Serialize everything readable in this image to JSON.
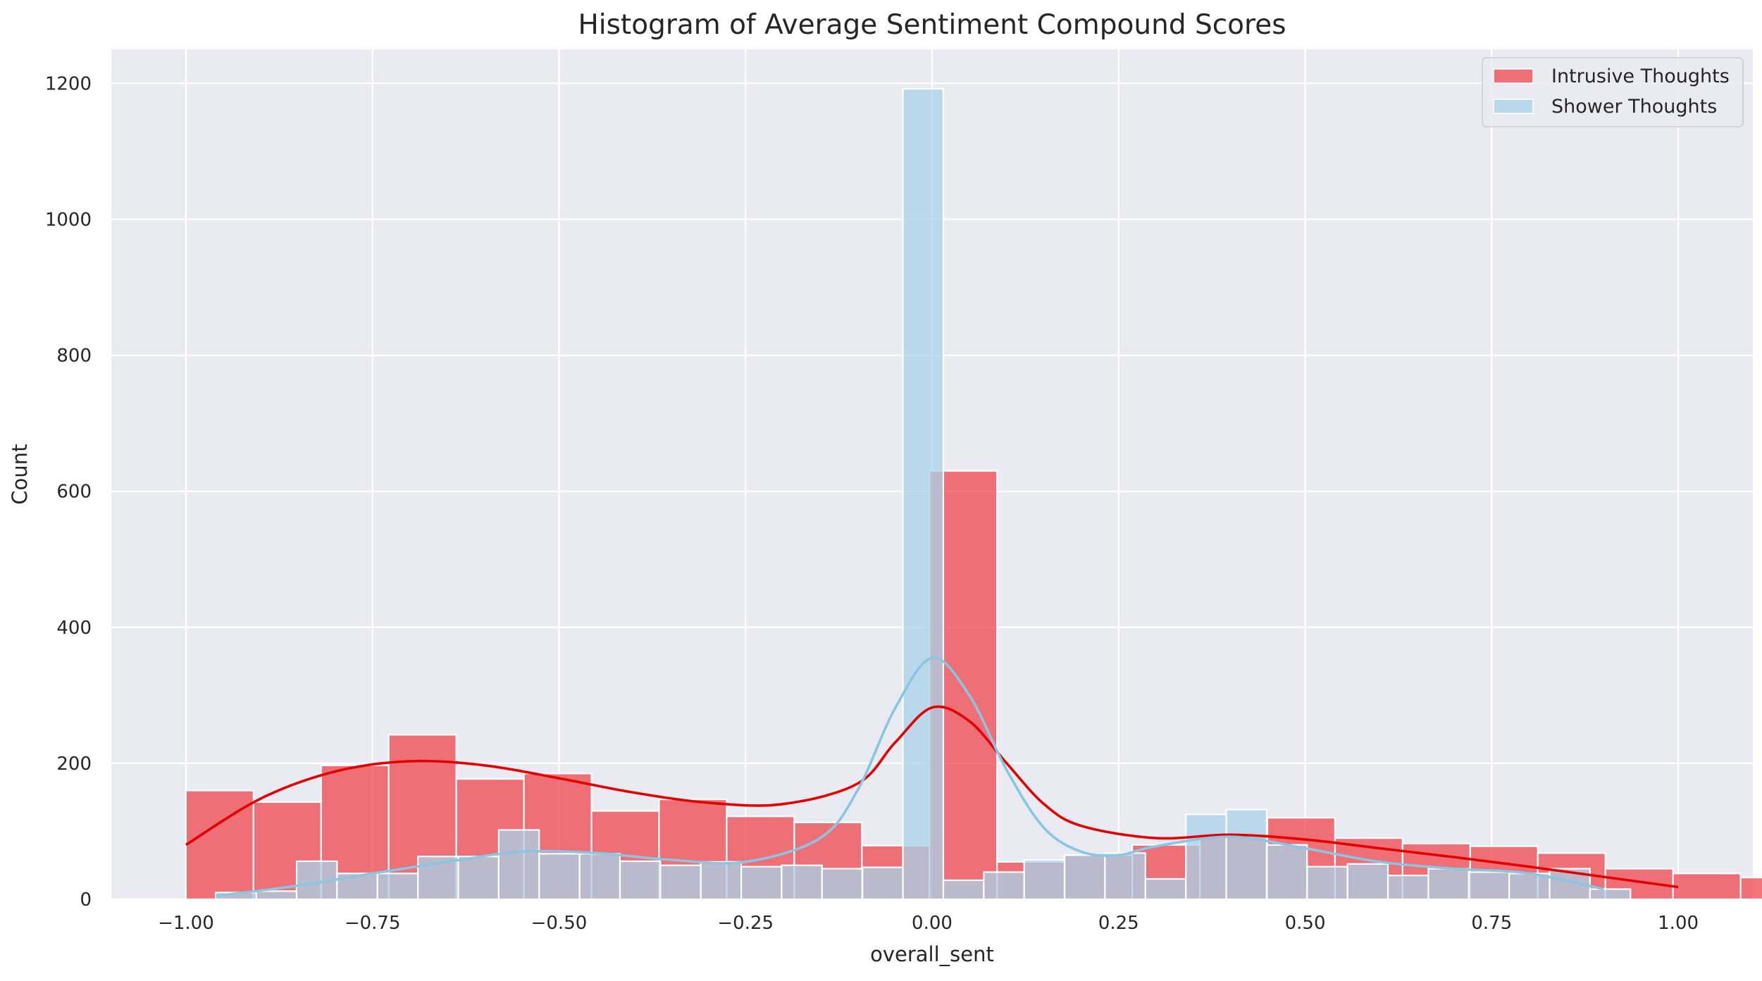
{
  "chart_data": {
    "type": "bar",
    "subtype": "histogram-with-kde",
    "title": "Histogram of Average Sentiment Compound Scores",
    "xlabel": "overall_sent",
    "ylabel": "Count",
    "xlim": [
      -1.1,
      1.1
    ],
    "ylim": [
      0,
      1250
    ],
    "xticks": [
      -1.0,
      -0.75,
      -0.5,
      -0.25,
      0.0,
      0.25,
      0.5,
      0.75,
      1.0
    ],
    "xtick_labels": [
      "−1.00",
      "−0.75",
      "−0.50",
      "−0.25",
      "0.00",
      "0.25",
      "0.50",
      "0.75",
      "1.00"
    ],
    "yticks": [
      0,
      200,
      400,
      600,
      800,
      1000,
      1200
    ],
    "ytick_labels": [
      "0",
      "200",
      "400",
      "600",
      "800",
      "1000",
      "1200"
    ],
    "grid": true,
    "legend_position": "top-right",
    "background": "#eaeaf2",
    "series": [
      {
        "name": "Intrusive Thoughts",
        "color": "#f0464c",
        "kde_color": "#e50000",
        "bin_start": -1.0,
        "bin_width": 0.09059,
        "counts": [
          160,
          143,
          197,
          242,
          177,
          185,
          130,
          147,
          122,
          113,
          79,
          630,
          55,
          65,
          80,
          93,
          120,
          90,
          82,
          78,
          68,
          45,
          38,
          32
        ],
        "kde": {
          "x": [
            -1.0,
            -0.9,
            -0.8,
            -0.7,
            -0.6,
            -0.5,
            -0.4,
            -0.3,
            -0.2,
            -0.1,
            -0.05,
            0.0,
            0.05,
            0.1,
            0.15,
            0.2,
            0.3,
            0.4,
            0.5,
            0.6,
            0.7,
            0.8,
            0.9,
            1.0
          ],
          "y": [
            80,
            148,
            188,
            203,
            197,
            178,
            157,
            142,
            140,
            170,
            230,
            282,
            262,
            200,
            140,
            108,
            90,
            95,
            88,
            75,
            62,
            48,
            33,
            18
          ]
        }
      },
      {
        "name": "Shower Thoughts",
        "color": "#a9d2ea",
        "kde_color": "#88c6e2",
        "bin_start": -0.96,
        "bin_width": 0.05417,
        "counts": [
          10,
          12,
          56,
          38,
          38,
          63,
          63,
          102,
          67,
          67,
          56,
          50,
          55,
          48,
          50,
          45,
          47,
          1192,
          28,
          40,
          58,
          65,
          68,
          30,
          125,
          132,
          80,
          48,
          52,
          35,
          45,
          40,
          38,
          45,
          15
        ],
        "kde": {
          "x": [
            -0.96,
            -0.85,
            -0.75,
            -0.65,
            -0.55,
            -0.45,
            -0.35,
            -0.25,
            -0.15,
            -0.1,
            -0.05,
            0.0,
            0.05,
            0.1,
            0.15,
            0.2,
            0.25,
            0.3,
            0.4,
            0.5,
            0.6,
            0.7,
            0.8,
            0.9
          ],
          "y": [
            5,
            20,
            38,
            55,
            70,
            68,
            58,
            55,
            90,
            160,
            280,
            355,
            300,
            190,
            105,
            70,
            65,
            78,
            92,
            75,
            55,
            45,
            38,
            15
          ]
        }
      }
    ]
  }
}
